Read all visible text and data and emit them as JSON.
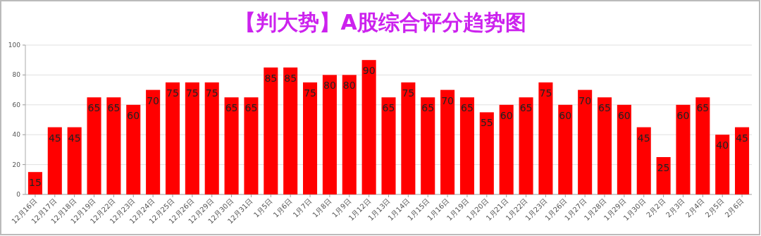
{
  "chart_data": {
    "type": "bar",
    "title": "【判大势】A股综合评分趋势图",
    "categories": [
      "12月16日",
      "12月17日",
      "12月18日",
      "12月19日",
      "12月22日",
      "12月23日",
      "12月24日",
      "12月25日",
      "12月26日",
      "12月29日",
      "12月30日",
      "12月31日",
      "1月5日",
      "1月6日",
      "1月7日",
      "1月8日",
      "1月9日",
      "1月12日",
      "1月13日",
      "1月14日",
      "1月15日",
      "1月16日",
      "1月19日",
      "1月20日",
      "1月21日",
      "1月22日",
      "1月23日",
      "1月26日",
      "1月27日",
      "1月28日",
      "1月29日",
      "1月30日",
      "2月2日",
      "2月3日",
      "2月4日",
      "2月5日",
      "2月6日"
    ],
    "values": [
      15,
      45,
      45,
      65,
      65,
      60,
      70,
      75,
      75,
      75,
      65,
      65,
      85,
      85,
      75,
      80,
      80,
      90,
      65,
      75,
      65,
      70,
      65,
      55,
      60,
      65,
      75,
      60,
      70,
      65,
      60,
      45,
      25,
      60,
      65,
      40,
      45
    ],
    "color": "#ff0000",
    "ylim": [
      0,
      100
    ],
    "yticks": [
      0,
      20,
      40,
      60,
      80,
      100
    ],
    "grid": "y",
    "data_labels": true
  }
}
